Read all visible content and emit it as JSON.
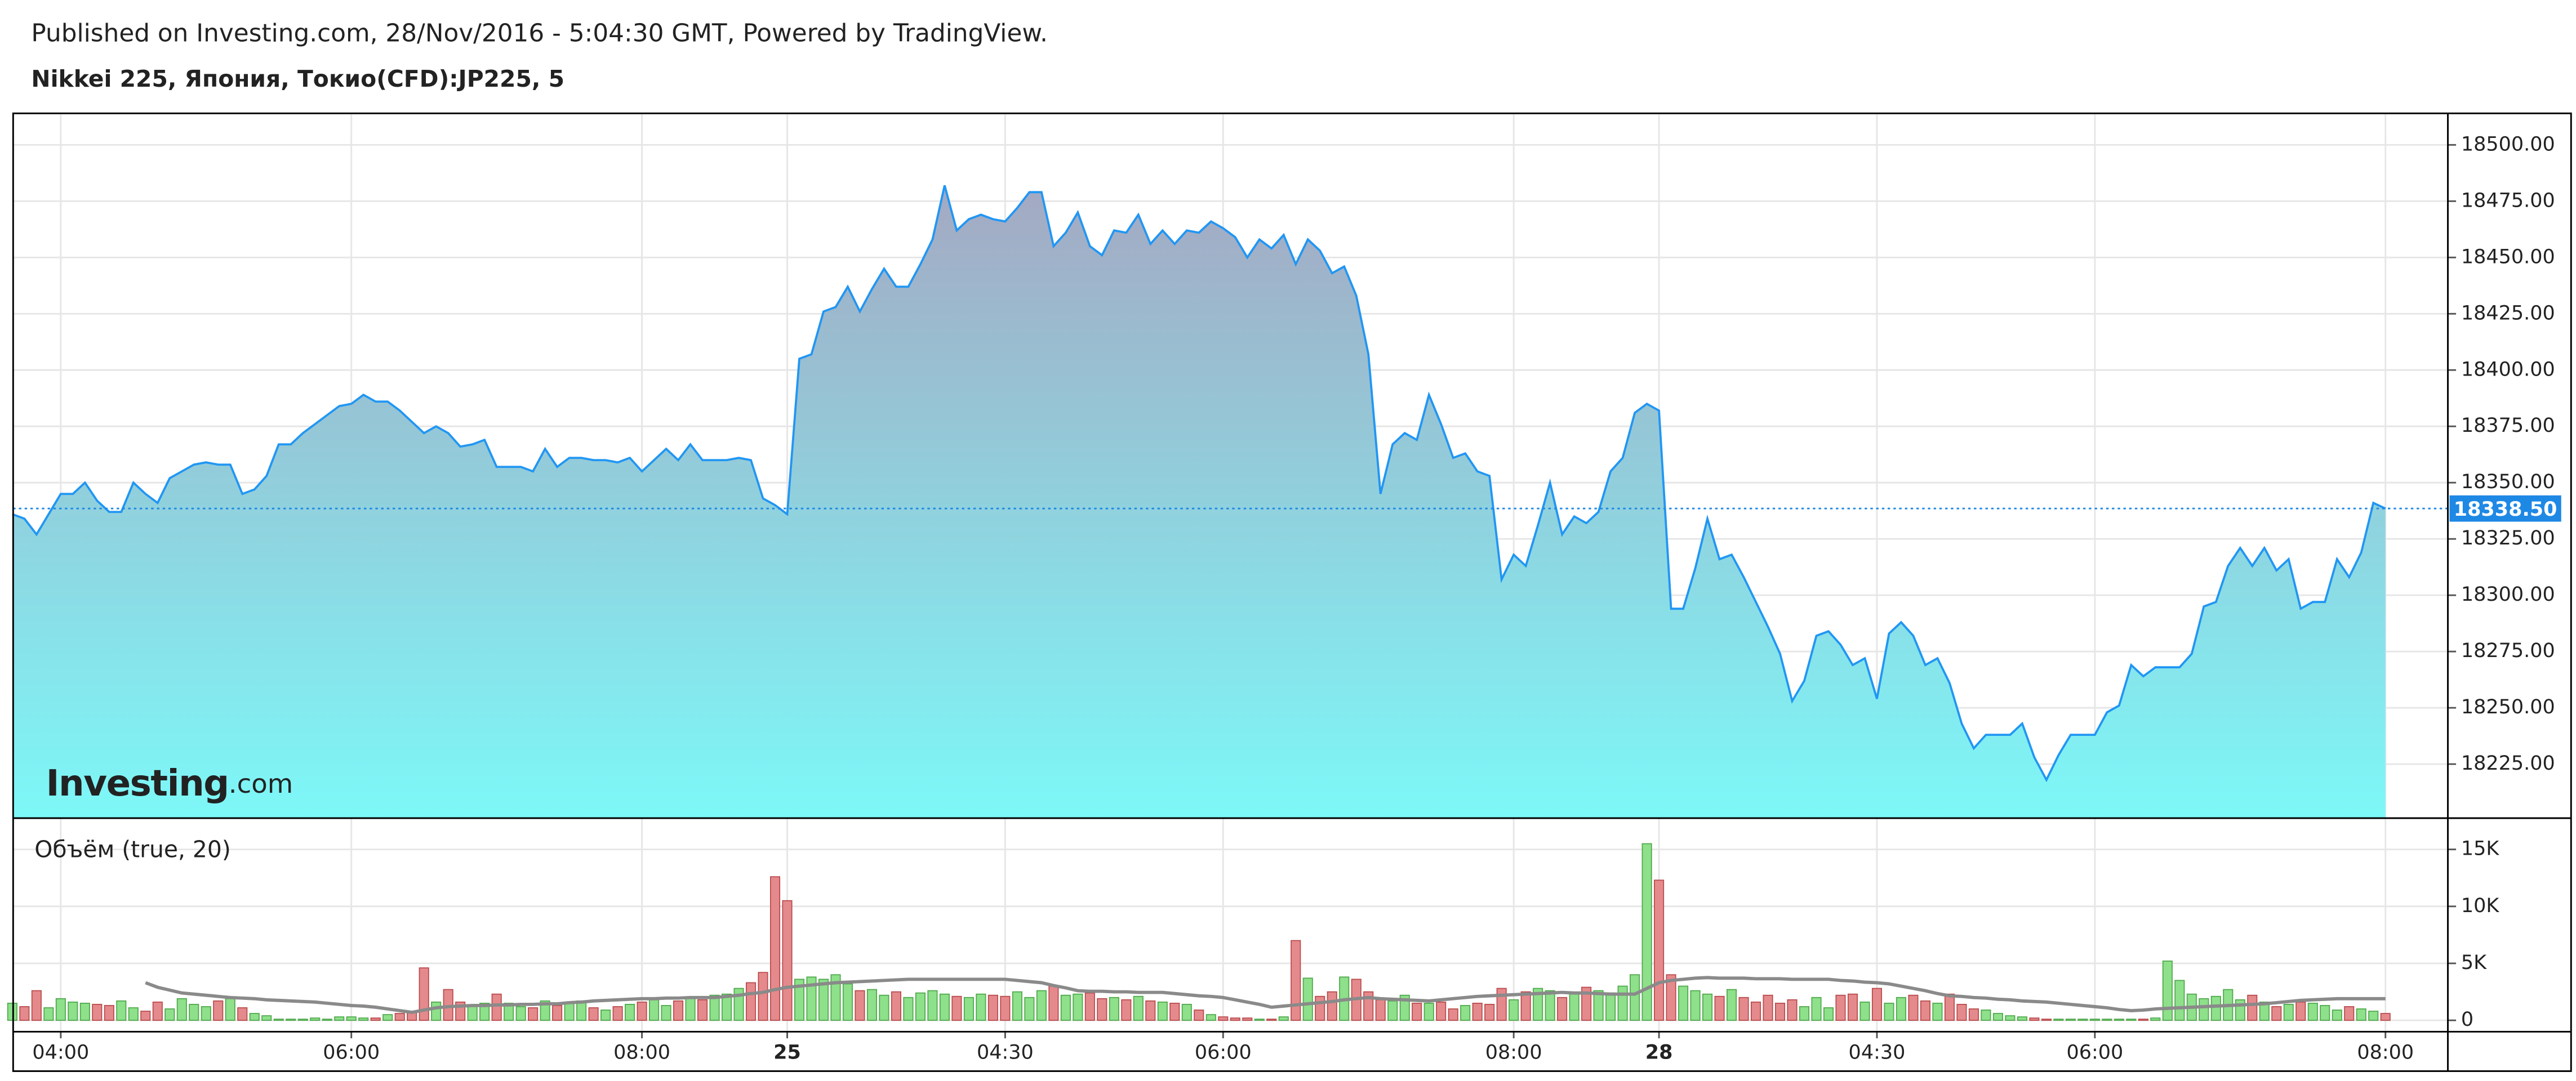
{
  "header": "Published on Investing.com, 28/Nov/2016 - 5:04:30 GMT, Powered by TradingView.",
  "title": "Nikkei 225, Япония, Токио(CFD):JP225, 5",
  "logo": {
    "brand": "Investing",
    "suffix": ".com"
  },
  "chart_data": [
    {
      "type": "area",
      "line_color": "#2196f3",
      "fill_top": "#a4a8c2",
      "fill_bottom": "#7df8f8",
      "ylim": [
        18201,
        18514
      ],
      "yticks": [
        {
          "value": 18225,
          "label": "18225.00"
        },
        {
          "value": 18250,
          "label": "18250.00"
        },
        {
          "value": 18275,
          "label": "18275.00"
        },
        {
          "value": 18300,
          "label": "18300.00"
        },
        {
          "value": 18325,
          "label": "18325.00"
        },
        {
          "value": 18350,
          "label": "18350.00"
        },
        {
          "value": 18375,
          "label": "18375.00"
        },
        {
          "value": 18400,
          "label": "18400.00"
        },
        {
          "value": 18425,
          "label": "18425.00"
        },
        {
          "value": 18450,
          "label": "18450.00"
        },
        {
          "value": 18475,
          "label": "18475.00"
        },
        {
          "value": 18500,
          "label": "18500.00"
        }
      ],
      "last_price": {
        "value": 18338.5,
        "label": "18338.50"
      },
      "last_price_color": "#1e88e5",
      "values": [
        18336,
        18334,
        18327,
        18336,
        18345,
        18345,
        18350,
        18342,
        18337,
        18337,
        18350,
        18345,
        18341,
        18352,
        18355,
        18358,
        18359,
        18358,
        18358,
        18345,
        18347,
        18353,
        18367,
        18367,
        18372,
        18376,
        18380,
        18384,
        18385,
        18389,
        18386,
        18386,
        18382,
        18377,
        18372,
        18375,
        18372,
        18366,
        18367,
        18369,
        18357,
        18357,
        18357,
        18355,
        18365,
        18357,
        18361,
        18361,
        18360,
        18360,
        18359,
        18361,
        18355,
        18360,
        18365,
        18360,
        18367,
        18360,
        18360,
        18360,
        18361,
        18360,
        18343,
        18340,
        18336,
        18405,
        18407,
        18426,
        18428,
        18437,
        18426,
        18436,
        18445,
        18437,
        18437,
        18447,
        18458,
        18482,
        18462,
        18467,
        18469,
        18467,
        18466,
        18472,
        18479,
        18479,
        18455,
        18461,
        18470,
        18455,
        18451,
        18462,
        18461,
        18469,
        18456,
        18462,
        18456,
        18462,
        18461,
        18466,
        18463,
        18459,
        18450,
        18458,
        18454,
        18460,
        18447,
        18458,
        18453,
        18443,
        18446,
        18433,
        18407,
        18345,
        18367,
        18372,
        18369,
        18389,
        18376,
        18361,
        18363,
        18355,
        18353,
        18307,
        18318,
        18313,
        18331,
        18350,
        18327,
        18335,
        18332,
        18337,
        18355,
        18361,
        18381,
        18385,
        18382,
        18294,
        18294,
        18312,
        18334,
        18316,
        18318,
        18308,
        18297,
        18286,
        18274,
        18253,
        18262,
        18282,
        18284,
        18278,
        18269,
        18272,
        18254,
        18283,
        18288,
        18282,
        18269,
        18272,
        18261,
        18243,
        18232,
        18238,
        18238,
        18238,
        18243,
        18228,
        18218,
        18229,
        18238,
        18238,
        18238,
        18248,
        18251,
        18269,
        18264,
        18268,
        18268,
        18268,
        18274,
        18295,
        18297,
        18313,
        18321,
        18313,
        18321,
        18311,
        18316,
        18294,
        18297,
        18297,
        18316,
        18308,
        18319,
        18341,
        18338.5
      ]
    },
    {
      "type": "bar",
      "title": "Объём (true, 20)",
      "color_up": "#8ee08a",
      "color_down": "#e58a8c",
      "ylim": [
        -1000,
        17600
      ],
      "yticks": [
        0,
        {
          "value": 5000,
          "label": "5K"
        },
        {
          "value": 10000,
          "label": "10K"
        },
        {
          "value": 15000,
          "label": "15K"
        }
      ],
      "categories": [
        null,
        null,
        null,
        null,
        "04:00",
        null,
        null,
        null,
        null,
        null,
        null,
        null,
        null,
        null,
        null,
        null,
        null,
        null,
        null,
        null,
        null,
        null,
        null,
        null,
        null,
        null,
        null,
        null,
        "06:00",
        null,
        null,
        null,
        null,
        null,
        null,
        null,
        null,
        null,
        null,
        null,
        null,
        null,
        null,
        null,
        null,
        null,
        null,
        null,
        null,
        null,
        null,
        null,
        "08:00",
        null,
        null,
        null,
        null,
        null,
        null,
        null,
        null,
        null,
        null,
        null,
        "25",
        null,
        null,
        null,
        null,
        null,
        null,
        null,
        null,
        null,
        null,
        null,
        null,
        null,
        null,
        null,
        null,
        null,
        "04:30",
        null,
        null,
        null,
        null,
        null,
        null,
        null,
        null,
        null,
        null,
        null,
        null,
        null,
        null,
        null,
        null,
        null,
        "06:00",
        null,
        null,
        null,
        null,
        null,
        null,
        null,
        null,
        null,
        null,
        null,
        null,
        null,
        null,
        null,
        null,
        null,
        null,
        null,
        null,
        null,
        null,
        null,
        "08:00",
        null,
        null,
        null,
        null,
        null,
        null,
        null,
        null,
        null,
        null,
        null,
        "28",
        null,
        null,
        null,
        null,
        null,
        null,
        null,
        null,
        null,
        null,
        null,
        null,
        null,
        null,
        null,
        null,
        null,
        "04:30",
        null,
        null,
        null,
        null,
        null,
        null,
        null,
        null,
        null,
        null,
        null,
        null,
        null,
        null,
        null,
        null,
        null,
        "06:00",
        null,
        null,
        null,
        null,
        null,
        null,
        null,
        null,
        null,
        null,
        null,
        null,
        null,
        null,
        null,
        null,
        null,
        null,
        null,
        null,
        null,
        null,
        null,
        "08:00"
      ],
      "values": [
        1500,
        1200,
        2600,
        1100,
        1900,
        1600,
        1500,
        1400,
        1300,
        1700,
        1100,
        800,
        1600,
        1000,
        1900,
        1400,
        1200,
        1700,
        1900,
        1100,
        600,
        400,
        100,
        100,
        100,
        200,
        100,
        300,
        300,
        200,
        200,
        500,
        600,
        700,
        4600,
        1600,
        2700,
        1600,
        1300,
        1500,
        2300,
        1500,
        1200,
        1100,
        1700,
        1300,
        1600,
        1700,
        1100,
        900,
        1200,
        1400,
        1600,
        1800,
        1300,
        1700,
        2000,
        1800,
        2200,
        2300,
        2800,
        3300,
        4200,
        12600,
        10500,
        3600,
        3800,
        3600,
        4000,
        3200,
        2600,
        2700,
        2200,
        2500,
        2000,
        2400,
        2600,
        2300,
        2100,
        2000,
        2300,
        2200,
        2100,
        2500,
        2000,
        2600,
        3000,
        2200,
        2300,
        2400,
        1900,
        2000,
        1800,
        2100,
        1700,
        1600,
        1500,
        1400,
        900,
        500,
        300,
        200,
        200,
        100,
        100,
        300,
        7000,
        3700,
        2100,
        2500,
        3800,
        3600,
        2500,
        1800,
        1700,
        2200,
        1500,
        1500,
        1600,
        1000,
        1300,
        1500,
        1400,
        2800,
        1800,
        2500,
        2800,
        2600,
        2000,
        2300,
        2900,
        2600,
        2400,
        3000,
        4000,
        15500,
        12300,
        4000,
        3000,
        2600,
        2300,
        2100,
        2700,
        2000,
        1600,
        2200,
        1500,
        1800,
        1200,
        2000,
        1100,
        2200,
        2300,
        1600,
        2800,
        1500,
        2000,
        2200,
        1700,
        1500,
        2300,
        1400,
        1000,
        900,
        600,
        400,
        300,
        200,
        100,
        100,
        100,
        100,
        100,
        100,
        100,
        100,
        100,
        200,
        5200,
        3500,
        2300,
        1900,
        2100,
        2700,
        1800,
        2200,
        1600,
        1200,
        1400,
        1600,
        1500,
        1300,
        900,
        1200,
        1000,
        800,
        600
      ],
      "ma": {
        "color": "#8a8a8a",
        "values": [
          null,
          null,
          null,
          null,
          null,
          null,
          null,
          null,
          null,
          null,
          null,
          3300,
          2900,
          2650,
          2400,
          2300,
          2200,
          2100,
          2000,
          1950,
          1900,
          1800,
          1750,
          1700,
          1650,
          1600,
          1500,
          1400,
          1300,
          1250,
          1150,
          1000,
          850,
          700,
          900,
          1100,
          1200,
          1250,
          1300,
          1300,
          1350,
          1350,
          1400,
          1400,
          1450,
          1450,
          1550,
          1600,
          1700,
          1750,
          1800,
          1850,
          1900,
          1900,
          1950,
          1950,
          2000,
          2000,
          2000,
          2100,
          2200,
          2350,
          2450,
          2700,
          2900,
          3000,
          3100,
          3200,
          3300,
          3350,
          3400,
          3450,
          3500,
          3550,
          3600,
          3600,
          3600,
          3600,
          3600,
          3600,
          3600,
          3600,
          3600,
          3500,
          3400,
          3300,
          3050,
          2850,
          2600,
          2550,
          2550,
          2500,
          2500,
          2450,
          2450,
          2450,
          2350,
          2250,
          2150,
          2100,
          2000,
          1800,
          1600,
          1400,
          1150,
          1250,
          1350,
          1450,
          1550,
          1650,
          1800,
          1900,
          2000,
          1900,
          1850,
          1800,
          1750,
          1700,
          1800,
          1900,
          2000,
          2100,
          2150,
          2200,
          2250,
          2300,
          2350,
          2400,
          2450,
          2400,
          2400,
          2350,
          2300,
          2300,
          2300,
          2800,
          3300,
          3500,
          3600,
          3700,
          3750,
          3700,
          3700,
          3700,
          3650,
          3650,
          3650,
          3600,
          3600,
          3600,
          3600,
          3500,
          3450,
          3350,
          3300,
          3200,
          3000,
          2800,
          2600,
          2350,
          2150,
          2100,
          2000,
          1950,
          1850,
          1800,
          1700,
          1650,
          1600,
          1500,
          1400,
          1300,
          1200,
          1100,
          950,
          850,
          900,
          1000,
          1050,
          1100,
          1150,
          1200,
          1250,
          1300,
          1350,
          1400,
          1450,
          1550,
          1650,
          1750,
          1800,
          1850,
          1900,
          1900,
          1900,
          1900,
          1900
        ]
      }
    }
  ]
}
